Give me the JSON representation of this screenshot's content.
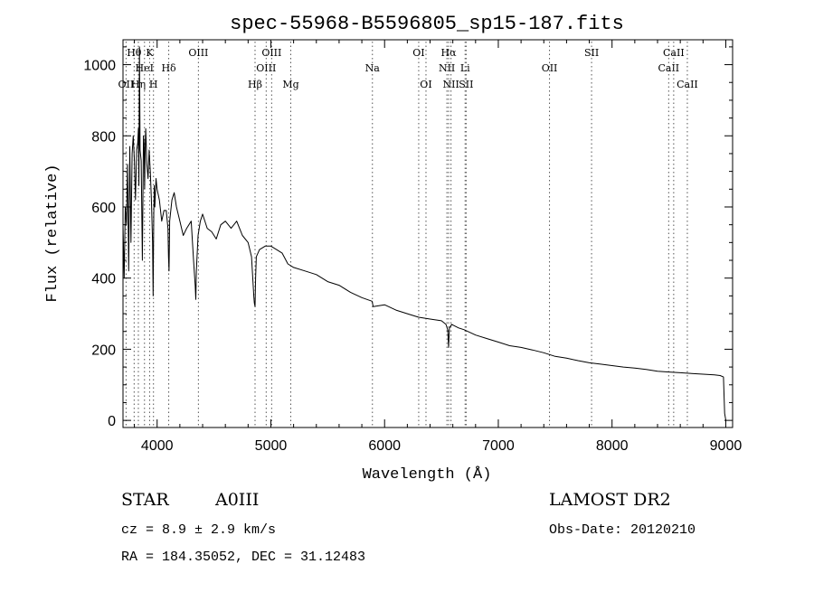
{
  "chart_data": {
    "type": "line",
    "title": "spec-55968-B5596805_sp15-187.fits",
    "xlabel": "Wavelength (Å)",
    "ylabel": "Flux (relative)",
    "xlim": [
      3700,
      9060
    ],
    "ylim": [
      -20,
      1070
    ],
    "grid": false,
    "legend": "none",
    "x_ticks": [
      4000,
      5000,
      6000,
      7000,
      8000,
      9000
    ],
    "y_ticks": [
      0,
      200,
      400,
      600,
      800,
      1000
    ],
    "line_color": "#000000",
    "marker_color": "#555555",
    "series": [
      {
        "x": [
          3700,
          3710,
          3720,
          3730,
          3740,
          3750,
          3760,
          3770,
          3780,
          3790,
          3800,
          3810,
          3820,
          3830,
          3835,
          3840,
          3845,
          3850,
          3860,
          3870,
          3880,
          3885,
          3890,
          3895,
          3900,
          3910,
          3920,
          3930,
          3940,
          3950,
          3960,
          3965,
          3970,
          3975,
          3980,
          3990,
          4000,
          4020,
          4040,
          4060,
          4080,
          4095,
          4100,
          4105,
          4110,
          4130,
          4150,
          4170,
          4200,
          4230,
          4260,
          4300,
          4320,
          4335,
          4340,
          4345,
          4360,
          4380,
          4400,
          4440,
          4480,
          4520,
          4560,
          4600,
          4650,
          4700,
          4750,
          4800,
          4830,
          4850,
          4855,
          4861,
          4866,
          4872,
          4900,
          4950,
          5000,
          5050,
          5100,
          5150,
          5200,
          5300,
          5400,
          5500,
          5600,
          5700,
          5800,
          5890,
          5900,
          6000,
          6100,
          6200,
          6300,
          6400,
          6500,
          6540,
          6555,
          6563,
          6570,
          6590,
          6650,
          6700,
          6800,
          6900,
          7000,
          7100,
          7200,
          7300,
          7400,
          7500,
          7600,
          7700,
          7800,
          7900,
          8000,
          8100,
          8200,
          8300,
          8400,
          8500,
          8600,
          8700,
          8800,
          8900,
          8950,
          8980,
          8990,
          9000
        ],
        "y": [
          550,
          400,
          600,
          550,
          720,
          420,
          770,
          500,
          750,
          800,
          730,
          620,
          760,
          780,
          820,
          660,
          1050,
          760,
          730,
          450,
          800,
          780,
          650,
          760,
          820,
          720,
          680,
          760,
          700,
          620,
          500,
          350,
          580,
          660,
          600,
          680,
          650,
          620,
          560,
          590,
          590,
          540,
          460,
          420,
          560,
          620,
          640,
          600,
          560,
          520,
          540,
          560,
          450,
          380,
          340,
          420,
          520,
          560,
          580,
          540,
          530,
          510,
          550,
          560,
          540,
          560,
          520,
          500,
          460,
          350,
          330,
          320,
          400,
          460,
          480,
          490,
          490,
          480,
          470,
          440,
          430,
          420,
          410,
          390,
          380,
          360,
          345,
          335,
          320,
          325,
          310,
          300,
          290,
          285,
          280,
          270,
          255,
          205,
          260,
          270,
          260,
          255,
          240,
          230,
          220,
          210,
          205,
          198,
          190,
          180,
          175,
          168,
          162,
          158,
          154,
          150,
          147,
          143,
          138,
          136,
          134,
          132,
          130,
          128,
          126,
          122,
          20,
          0
        ]
      }
    ],
    "line_markers": [
      {
        "label": "OII",
        "x": 3727,
        "row": 3
      },
      {
        "label": "Hθ",
        "x": 3798,
        "row": 1
      },
      {
        "label": "Hη",
        "x": 3835,
        "row": 3
      },
      {
        "label": "HeI",
        "x": 3889,
        "row": 2
      },
      {
        "label": "K",
        "x": 3934,
        "row": 1
      },
      {
        "label": "H",
        "x": 3968,
        "row": 3
      },
      {
        "label": "Hδ",
        "x": 4102,
        "row": 2
      },
      {
        "label": "OIII",
        "x": 4363,
        "row": 1
      },
      {
        "label": "Hβ",
        "x": 4861,
        "row": 3
      },
      {
        "label": "OIII",
        "x": 4959,
        "row": 2
      },
      {
        "label": "OIII",
        "x": 5007,
        "row": 1
      },
      {
        "label": "Mg",
        "x": 5175,
        "row": 3
      },
      {
        "label": "Na",
        "x": 5893,
        "row": 2
      },
      {
        "label": "OI",
        "x": 6300,
        "row": 1
      },
      {
        "label": "OI",
        "x": 6364,
        "row": 3
      },
      {
        "label": "NII",
        "x": 6548,
        "row": 2
      },
      {
        "label": "Hα",
        "x": 6563,
        "row": 1
      },
      {
        "label": "NII",
        "x": 6584,
        "row": 3
      },
      {
        "label": "Li",
        "x": 6708,
        "row": 2
      },
      {
        "label": "SII",
        "x": 6717,
        "row": 3
      },
      {
        "label": "OII",
        "x": 7450,
        "row": 2
      },
      {
        "label": "SII",
        "x": 7820,
        "row": 1
      },
      {
        "label": "CaII",
        "x": 8498,
        "row": 2
      },
      {
        "label": "CaII",
        "x": 8542,
        "row": 1
      },
      {
        "label": "CaII",
        "x": 8662,
        "row": 3
      }
    ]
  },
  "info": {
    "object_class": "STAR",
    "subclass": "A0III",
    "survey": "LAMOST DR2",
    "cz": "cz = 8.9 ± 2.9 km/s",
    "obs_date": "Obs-Date: 20120210",
    "coords": "RA = 184.35052, DEC =  31.12483"
  }
}
